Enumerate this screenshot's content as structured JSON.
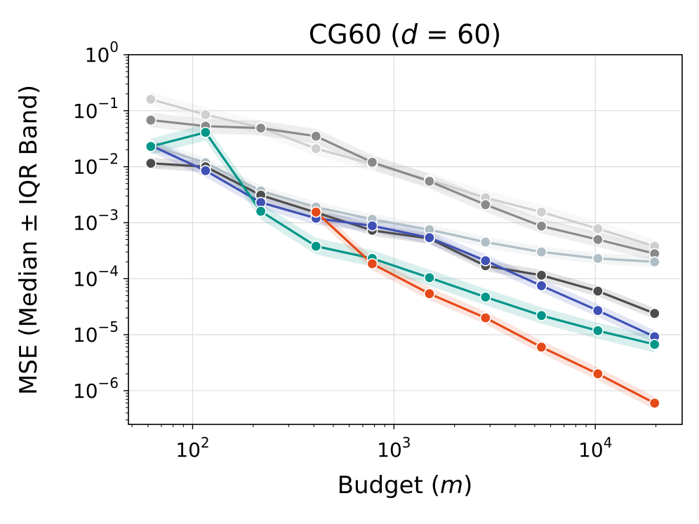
{
  "chart_data": {
    "type": "line",
    "title_text": "CG60 (",
    "title_var": "d",
    "title_eq": " = 60)",
    "xlabel_text": "Budget (",
    "xlabel_var": "m",
    "xlabel_close": ")",
    "ylabel": "MSE (Median ± IQR Band)",
    "xscale": "log",
    "yscale": "log",
    "xlim": [
      48,
      27000
    ],
    "ylim": [
      2.5e-07,
      1
    ],
    "x_ticks": [
      {
        "value": 100,
        "base": "10",
        "exp": "2"
      },
      {
        "value": 1000,
        "base": "10",
        "exp": "3"
      },
      {
        "value": 10000,
        "base": "10",
        "exp": "4"
      }
    ],
    "y_ticks": [
      {
        "value": 1,
        "base": "10",
        "exp": "0"
      },
      {
        "value": 0.1,
        "base": "10",
        "exp": "−1"
      },
      {
        "value": 0.01,
        "base": "10",
        "exp": "−2"
      },
      {
        "value": 0.001,
        "base": "10",
        "exp": "−3"
      },
      {
        "value": 0.0001,
        "base": "10",
        "exp": "−4"
      },
      {
        "value": 1e-05,
        "base": "10",
        "exp": "−5"
      },
      {
        "value": 1e-06,
        "base": "10",
        "exp": "−6"
      }
    ],
    "x": [
      62,
      116,
      218,
      410,
      780,
      1500,
      2850,
      5400,
      10300,
      19700
    ],
    "grid": true,
    "series": [
      {
        "name": "series-light-gray",
        "color": "#cfcfcf",
        "band_factor": 1.35,
        "values": [
          0.16,
          0.085,
          0.05,
          0.021,
          0.0112,
          0.0058,
          0.0028,
          0.00155,
          0.00078,
          0.00038
        ]
      },
      {
        "name": "series-gray",
        "color": "#8a8a8a",
        "band_factor": 1.35,
        "values": [
          0.068,
          0.053,
          0.049,
          0.035,
          0.012,
          0.0055,
          0.0021,
          0.00087,
          0.0005,
          0.00028
        ]
      },
      {
        "name": "series-blue-gray",
        "color": "#b0bec5",
        "band_factor": 1.25,
        "values": [
          0.024,
          0.0118,
          0.0037,
          0.0019,
          0.00115,
          0.00075,
          0.00045,
          0.0003,
          0.00023,
          0.0002
        ]
      },
      {
        "name": "series-dark-gray",
        "color": "#4d4d4d",
        "band_factor": 1.25,
        "values": [
          0.0115,
          0.01,
          0.0031,
          0.00152,
          0.00073,
          0.00052,
          0.00017,
          0.000115,
          6e-05,
          2.4e-05
        ]
      },
      {
        "name": "series-blue",
        "color": "#3f51b5",
        "band_factor": 1.3,
        "values": [
          0.024,
          0.0085,
          0.0023,
          0.0012,
          0.00088,
          0.00054,
          0.00021,
          7.5e-05,
          2.7e-05,
          9.2e-06
        ]
      },
      {
        "name": "series-teal",
        "color": "#009688",
        "band_factor": 1.4,
        "values": [
          0.023,
          0.041,
          0.0016,
          0.00038,
          0.00023,
          0.000104,
          4.7e-05,
          2.2e-05,
          1.18e-05,
          6.7e-06
        ]
      },
      {
        "name": "series-orange",
        "color": "#e64a19",
        "band_factor": 1.3,
        "values": [
          null,
          null,
          null,
          0.00155,
          0.000185,
          5.4e-05,
          2e-05,
          6e-06,
          2e-06,
          6e-07
        ]
      }
    ]
  }
}
